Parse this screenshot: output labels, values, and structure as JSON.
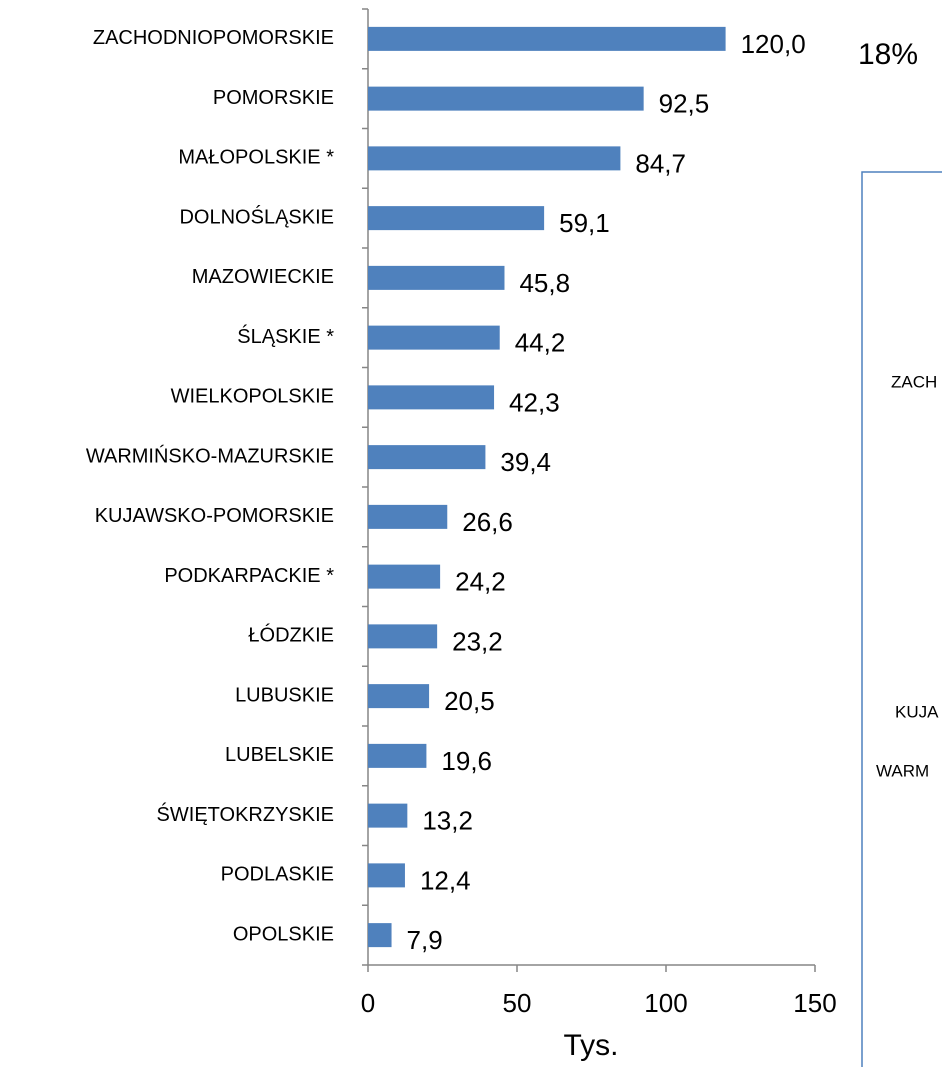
{
  "chart_data": {
    "type": "bar",
    "orientation": "horizontal",
    "categories": [
      "ZACHODNIOPOMORSKIE",
      "POMORSKIE",
      "MAŁOPOLSKIE *",
      "DOLNOŚLĄSKIE",
      "MAZOWIECKIE",
      "ŚLĄSKIE *",
      "WIELKOPOLSKIE",
      "WARMIŃSKO-MAZURSKIE",
      "KUJAWSKO-POMORSKIE",
      "PODKARPACKIE *",
      "ŁÓDZKIE",
      "LUBUSKIE",
      "LUBELSKIE",
      "ŚWIĘTOKRZYSKIE",
      "PODLASKIE",
      "OPOLSKIE"
    ],
    "values": [
      120.0,
      92.5,
      84.7,
      59.1,
      45.8,
      44.2,
      42.3,
      39.4,
      26.6,
      24.2,
      23.2,
      20.5,
      19.6,
      13.2,
      12.4,
      7.9
    ],
    "value_labels": [
      "120,0",
      "92,5",
      "84,7",
      "59,1",
      "45,8",
      "44,2",
      "42,3",
      "39,4",
      "26,6",
      "24,2",
      "23,2",
      "20,5",
      "19,6",
      "13,2",
      "12,4",
      "7,9"
    ],
    "color": "#4f81bd",
    "xlabel": "Tys.",
    "xlim": [
      0,
      150
    ],
    "xticks": [
      0,
      50,
      100,
      150
    ],
    "grid": false
  },
  "side_panel": {
    "percent": "18%",
    "labels": [
      "ZACH",
      "KUJA",
      "WARM"
    ]
  }
}
